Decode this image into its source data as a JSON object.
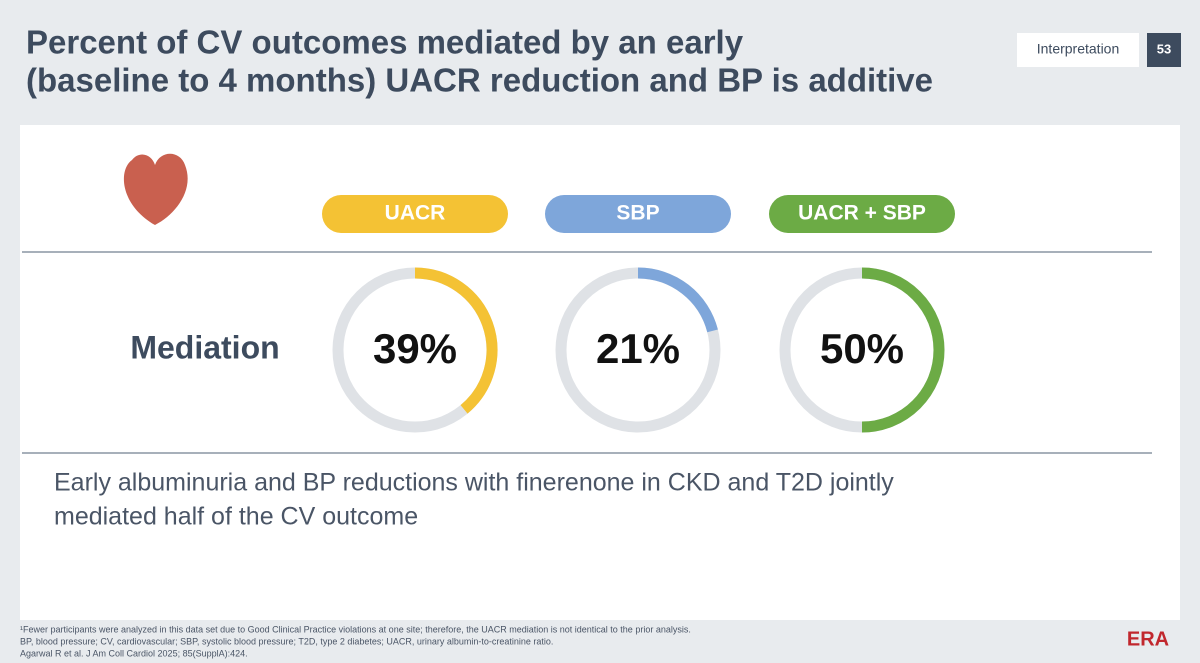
{
  "header": {
    "title_lines": [
      "Percent of CV outcomes mediated by an early",
      "(baseline to 4 months) UACR reduction and BP is additive"
    ],
    "tag": "Interpretation",
    "page": "53"
  },
  "chart_data": {
    "type": "gauge",
    "row_label": "Mediation",
    "categories": [
      "UACR",
      "SBP",
      "UACR + SBP"
    ],
    "values": [
      39,
      21,
      50
    ],
    "value_labels": [
      "39%",
      "21%",
      "50%"
    ],
    "colors": [
      "#f4c234",
      "#7ea6da",
      "#6cab45"
    ],
    "ylim": [
      0,
      100
    ]
  },
  "conclusion_lines": [
    "Early albuminuria and BP reductions with finerenone in CKD and T2D jointly",
    "mediated half of the CV outcome"
  ],
  "footnotes": [
    "¹Fewer participants were analyzed in this data set due to Good Clinical Practice violations at one site; therefore, the UACR mediation is not identical to the prior analysis.",
    "BP, blood pressure; CV, cardiovascular; SBP, systolic blood pressure; T2D, type 2 diabetes; UACR, urinary albumin-to-creatinine ratio.",
    "Agarwal R et al. J Am Coll Cardiol 2025; 85(SupplA):424."
  ],
  "logo": "ERA"
}
